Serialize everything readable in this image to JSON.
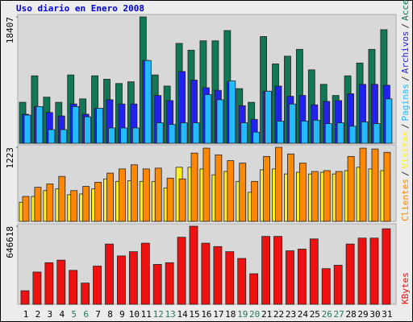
{
  "chart_data": [
    {
      "type": "bar",
      "title": "Uso diario en Enero 2008",
      "title_color": "#0000cc",
      "ylim": [
        0,
        18407
      ],
      "yticks": [
        18407
      ],
      "series": [
        {
          "name": "Accesos",
          "color": "#117755",
          "values": [
            5970,
            9825,
            6716,
            5970,
            9950,
            6467,
            9825,
            9328,
            8706,
            8955,
            18407,
            9950,
            8333,
            14551,
            13556,
            14924,
            14924,
            16417,
            7960,
            5970,
            15546,
            11566,
            12686,
            13681,
            10696,
            8582,
            6965,
            9825,
            11691,
            13681,
            16541
          ]
        },
        {
          "name": "Archivos",
          "color": "#2222ee",
          "values": [
            4230,
            5349,
            4478,
            3981,
            5722,
            4230,
            5100,
            6344,
            5722,
            5722,
            12067,
            6966,
            6220,
            10450,
            9206,
            8086,
            7713,
            8957,
            5474,
            3483,
            7588,
            8335,
            6842,
            6966,
            5598,
            6096,
            6220,
            7215,
            8584,
            8584,
            8459
          ]
        },
        {
          "name": "Paginas",
          "color": "#22bbff",
          "values": [
            4105,
            5349,
            1990,
            1990,
            5349,
            3856,
            5100,
            2239,
            2239,
            2239,
            12067,
            2986,
            2737,
            2986,
            2986,
            7091,
            6344,
            9081,
            2986,
            1617,
            7588,
            3234,
            5722,
            3234,
            3359,
            2861,
            2986,
            2488,
            3110,
            2861,
            6469
          ]
        }
      ]
    },
    {
      "type": "bar",
      "ylim": [
        0,
        1223
      ],
      "yticks": [
        1223
      ],
      "series": [
        {
          "name": "Visitas",
          "color": "#ffee22",
          "values": [
            316,
            412,
            508,
            536,
            440,
            453,
            536,
            701,
            660,
            673,
            660,
            660,
            550,
            893,
            893,
            866,
            769,
            824,
            660,
            481,
            852,
            866,
            783,
            811,
            783,
            811,
            783,
            838,
            893,
            866,
            838
          ]
        },
        {
          "name": "Clientes",
          "color": "#ff8800",
          "values": [
            412,
            563,
            618,
            742,
            508,
            577,
            646,
            797,
            866,
            934,
            866,
            879,
            714,
            701,
            1127,
            1209,
            1099,
            1003,
            962,
            660,
            1072,
            1223,
            1113,
            962,
            824,
            838,
            824,
            1072,
            1209,
            1195,
            1140
          ]
        }
      ]
    },
    {
      "type": "bar",
      "ylim": [
        0,
        646618
      ],
      "yticks": [
        646618
      ],
      "categories": [
        "1",
        "2",
        "3",
        "4",
        "5",
        "6",
        "7",
        "8",
        "9",
        "10",
        "11",
        "12",
        "13",
        "14",
        "15",
        "16",
        "17",
        "18",
        "19",
        "20",
        "21",
        "22",
        "23",
        "24",
        "25",
        "26",
        "27",
        "28",
        "29",
        "30",
        "31"
      ],
      "weekend_categories": [
        "5",
        "6",
        "12",
        "13",
        "19",
        "20",
        "26",
        "27"
      ],
      "weekend_color": "#227755",
      "series": [
        {
          "name": "KBytes",
          "color": "#ee1111",
          "values": [
            112449,
            267064,
            344372,
            365456,
            281120,
            175700,
            316260,
            498988,
            400596,
            435736,
            506016,
            330316,
            344372,
            555212,
            646618,
            506016,
            477904,
            435736,
            379512,
            253008,
            562240,
            562240,
            442764,
            456820,
            541156,
            295176,
            323288,
            498988,
            548184,
            548184,
            625492
          ]
        }
      ]
    }
  ],
  "legend_separator": "/"
}
